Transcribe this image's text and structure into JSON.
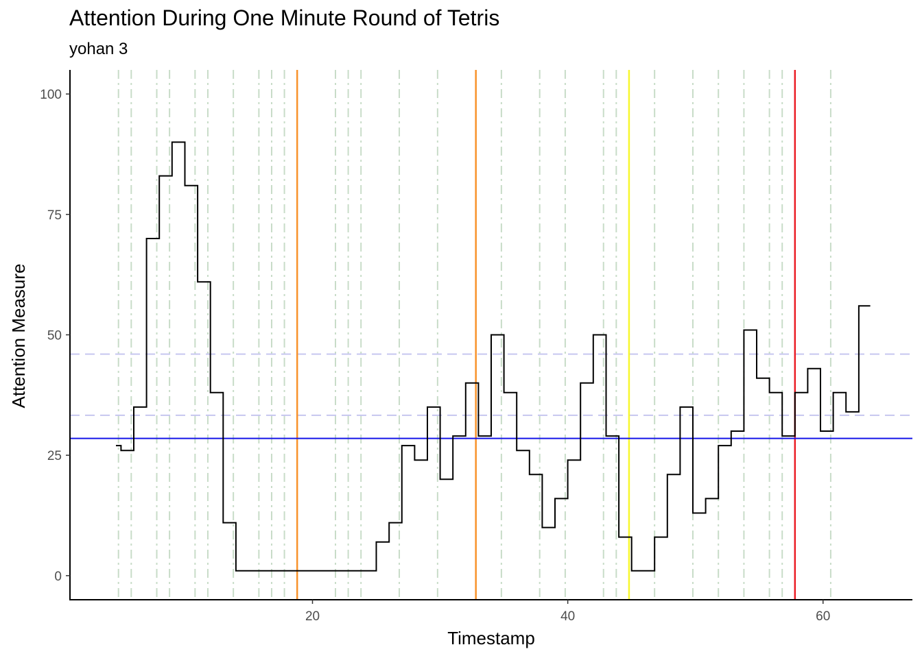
{
  "chart_data": {
    "type": "line",
    "step": true,
    "title": "Attention During One Minute Round of Tetris",
    "subtitle": "yohan 3",
    "xlabel": "Timestamp",
    "ylabel": "Attention Measure",
    "xlim": [
      1,
      67
    ],
    "ylim": [
      -5,
      105
    ],
    "x_ticks": [
      20,
      40,
      60
    ],
    "y_ticks": [
      0,
      25,
      50,
      75,
      100
    ],
    "grid": false,
    "line_color": "#000000",
    "points": [
      [
        4.6,
        27
      ],
      [
        5.0,
        26
      ],
      [
        6.0,
        35
      ],
      [
        7.0,
        70
      ],
      [
        8.0,
        83
      ],
      [
        9.0,
        90
      ],
      [
        10.0,
        81
      ],
      [
        11.0,
        61
      ],
      [
        12.0,
        38
      ],
      [
        13.0,
        11
      ],
      [
        14.0,
        1
      ],
      [
        25.0,
        7
      ],
      [
        26.0,
        11
      ],
      [
        27.0,
        27
      ],
      [
        28.0,
        24
      ],
      [
        29.0,
        35
      ],
      [
        30.0,
        20
      ],
      [
        31.0,
        29
      ],
      [
        32.0,
        40
      ],
      [
        33.0,
        29
      ],
      [
        34.0,
        50
      ],
      [
        35.0,
        38
      ],
      [
        36.0,
        26
      ],
      [
        37.0,
        21
      ],
      [
        38.0,
        10
      ],
      [
        39.0,
        16
      ],
      [
        40.0,
        24
      ],
      [
        41.0,
        40
      ],
      [
        42.0,
        50
      ],
      [
        43.0,
        29
      ],
      [
        44.0,
        8
      ],
      [
        45.0,
        1
      ],
      [
        46.8,
        8
      ],
      [
        47.8,
        21
      ],
      [
        48.8,
        35
      ],
      [
        49.8,
        13
      ],
      [
        50.8,
        16
      ],
      [
        51.8,
        27
      ],
      [
        52.8,
        30
      ],
      [
        53.8,
        51
      ],
      [
        54.8,
        41
      ],
      [
        55.8,
        38
      ],
      [
        56.8,
        29
      ],
      [
        57.8,
        38
      ],
      [
        58.8,
        43
      ],
      [
        59.8,
        30
      ],
      [
        60.8,
        38
      ],
      [
        61.8,
        34
      ],
      [
        62.8,
        56
      ],
      [
        63.7,
        56
      ]
    ],
    "green_event_lines": [
      4.8,
      5.8,
      7.8,
      8.8,
      10.8,
      11.8,
      13.8,
      15.8,
      16.8,
      17.8,
      21.8,
      22.8,
      23.8,
      26.8,
      29.8,
      34.8,
      37.8,
      39.8,
      42.8,
      43.8,
      46.8,
      49.8,
      51.8,
      53.8,
      55.8,
      56.8,
      60.6
    ],
    "green_event_color": "#c8dcc8",
    "event_lines": [
      {
        "x": 18.8,
        "color": "#f8922a"
      },
      {
        "x": 32.8,
        "color": "#f8922a"
      },
      {
        "x": 44.8,
        "color": "#f7f72d"
      },
      {
        "x": 57.8,
        "color": "#ea1c24"
      }
    ],
    "mean_line": {
      "y": 28.5,
      "color": "#1515e8"
    },
    "dashed_hlines": [
      {
        "y": 46,
        "color": "#c6c6ef"
      },
      {
        "y": 33.3,
        "color": "#c6c6ef"
      }
    ]
  }
}
